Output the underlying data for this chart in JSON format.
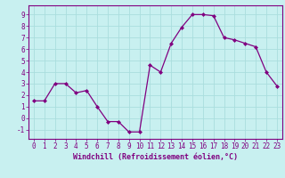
{
  "x": [
    0,
    1,
    2,
    3,
    4,
    5,
    6,
    7,
    8,
    9,
    10,
    11,
    12,
    13,
    14,
    15,
    16,
    17,
    18,
    19,
    20,
    21,
    22,
    23
  ],
  "y": [
    1.5,
    1.5,
    3.0,
    3.0,
    2.2,
    2.4,
    1.0,
    -0.3,
    -0.3,
    -1.2,
    -1.2,
    4.6,
    4.0,
    6.5,
    7.9,
    9.0,
    9.0,
    8.9,
    7.0,
    6.8,
    6.5,
    6.2,
    4.0,
    2.8
  ],
  "line_color": "#800080",
  "marker": "D",
  "marker_size": 2,
  "bg_color": "#c8f0f0",
  "grid_color": "#aadddd",
  "xlabel": "Windchill (Refroidissement éolien,°C)",
  "xlim": [
    -0.5,
    23.5
  ],
  "ylim": [
    -1.8,
    9.8
  ],
  "yticks": [
    -1,
    0,
    1,
    2,
    3,
    4,
    5,
    6,
    7,
    8,
    9
  ],
  "xticks": [
    0,
    1,
    2,
    3,
    4,
    5,
    6,
    7,
    8,
    9,
    10,
    11,
    12,
    13,
    14,
    15,
    16,
    17,
    18,
    19,
    20,
    21,
    22,
    23
  ],
  "axis_color": "#800080",
  "font_color": "#800080",
  "tick_fontsize": 5.5,
  "xlabel_fontsize": 6.0
}
